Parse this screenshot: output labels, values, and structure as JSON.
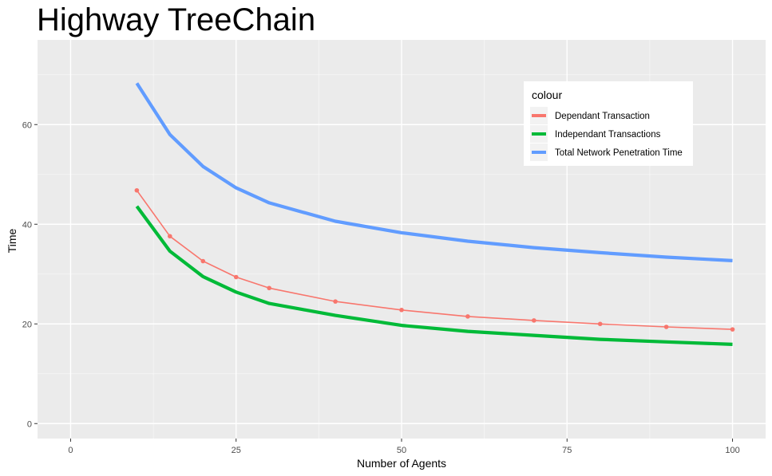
{
  "chart_data": {
    "type": "line",
    "title": "Highway TreeChain",
    "xlabel": "Number of Agents",
    "ylabel": "Time",
    "xlim": [
      -5,
      105
    ],
    "ylim": [
      -3,
      77
    ],
    "x_ticks": [
      0,
      25,
      50,
      75,
      100
    ],
    "y_ticks": [
      0,
      20,
      40,
      60
    ],
    "x_minor": [
      12.5,
      37.5,
      62.5,
      87.5
    ],
    "y_minor": [
      10,
      30,
      50,
      70
    ],
    "grid": true,
    "legend": {
      "title": "colour",
      "position": "top-right",
      "entries": [
        "Dependant Transaction",
        "Independant Transactions",
        "Total Network Penetration Time"
      ]
    },
    "series": [
      {
        "name": "Dependant Transaction",
        "color": "#F8766D",
        "style": "line-with-points",
        "x": [
          10,
          15,
          20,
          25,
          30,
          40,
          50,
          60,
          70,
          80,
          90,
          100
        ],
        "y": [
          46.8,
          37.6,
          32.6,
          29.4,
          27.2,
          24.5,
          22.8,
          21.5,
          20.7,
          20.0,
          19.4,
          18.9
        ]
      },
      {
        "name": "Independant Transactions",
        "color": "#00BA38",
        "style": "thick-line",
        "x": [
          10,
          15,
          20,
          25,
          30,
          35,
          40,
          50,
          60,
          70,
          80,
          90,
          100
        ],
        "y": [
          43.6,
          34.6,
          29.5,
          26.4,
          24.1,
          22.9,
          21.7,
          19.7,
          18.5,
          17.7,
          16.9,
          16.4,
          15.9
        ]
      },
      {
        "name": "Total Network Penetration Time",
        "color": "#619CFF",
        "style": "thick-line",
        "x": [
          10,
          15,
          20,
          25,
          30,
          40,
          50,
          60,
          70,
          80,
          90,
          100
        ],
        "y": [
          68.3,
          58.0,
          51.6,
          47.3,
          44.3,
          40.6,
          38.3,
          36.6,
          35.3,
          34.3,
          33.4,
          32.7
        ]
      }
    ]
  }
}
